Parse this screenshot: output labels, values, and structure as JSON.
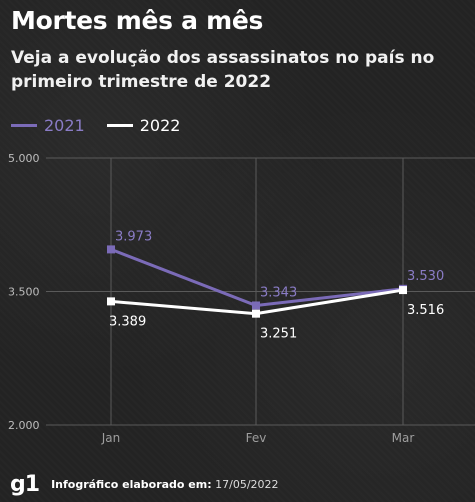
{
  "header": {
    "title": "Mortes mês a mês",
    "subtitle": "Veja a evolução dos assassinatos no país no primeiro trimestre de 2022"
  },
  "legend": {
    "items": [
      {
        "label": "2021",
        "color": "#7b6bb8"
      },
      {
        "label": "2022",
        "color": "#ffffff"
      }
    ]
  },
  "chart_data": {
    "type": "line",
    "categories": [
      "Jan",
      "Fev",
      "Mar"
    ],
    "series": [
      {
        "name": "2021",
        "values": [
          3973,
          3343,
          3530
        ],
        "labels": [
          "3.973",
          "3.343",
          "3.530"
        ],
        "color": "#7b6bb8",
        "label_color": "#8a7cc6"
      },
      {
        "name": "2022",
        "values": [
          3389,
          3251,
          3516
        ],
        "labels": [
          "3.389",
          "3.251",
          "3.516"
        ],
        "color": "#ffffff",
        "label_color": "#ffffff"
      }
    ],
    "yticks": [
      {
        "value": 2000,
        "label": "2.000"
      },
      {
        "value": 3500,
        "label": "3.500"
      },
      {
        "value": 5000,
        "label": "5.000"
      }
    ],
    "ylim": [
      2000,
      5000
    ],
    "grid": true,
    "legend_position": "top-left"
  },
  "footer": {
    "logo": "g1",
    "credit_label": "Infográfico elaborado em:",
    "credit_date": "17/05/2022"
  }
}
